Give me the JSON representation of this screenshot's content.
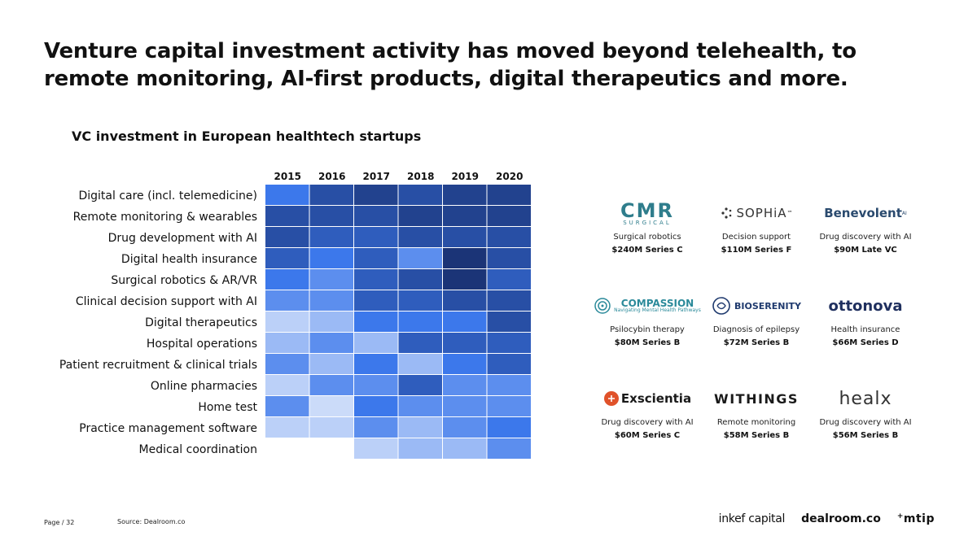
{
  "title": "Venture capital investment activity has moved beyond telehealth, to remote monitoring, AI-first products, digital therapeutics and more.",
  "chart_title": "VC investment in European healthtech startups",
  "chart_data": {
    "type": "heatmap",
    "title": "VC investment in European healthtech startups",
    "columns": [
      "2015",
      "2016",
      "2017",
      "2018",
      "2019",
      "2020"
    ],
    "rows": [
      "Digital care (incl. telemedicine)",
      "Remote monitoring & wearables",
      "Drug development with AI",
      "Digital health insurance",
      "Surgical robotics & AR/VR",
      "Clinical decision support with AI",
      "Digital therapeutics",
      "Hospital operations",
      "Patient recruitment & clinical trials",
      "Online pharmacies",
      "Home test",
      "Practice management software",
      "Medical coordination"
    ],
    "intensity_scale": "0 = no data (blank), 1 = lightest, 10 = darkest",
    "values": [
      [
        5,
        8,
        9,
        8,
        9,
        9
      ],
      [
        8,
        8,
        8,
        9,
        9,
        9
      ],
      [
        8,
        7,
        7,
        8,
        8,
        8
      ],
      [
        7,
        5,
        7,
        4,
        10,
        8
      ],
      [
        5,
        4,
        7,
        8,
        10,
        7
      ],
      [
        4,
        4,
        7,
        7,
        8,
        8
      ],
      [
        1,
        2,
        5,
        5,
        5,
        8
      ],
      [
        2,
        4,
        2,
        7,
        7,
        7
      ],
      [
        4,
        2,
        5,
        2,
        5,
        7
      ],
      [
        1,
        4,
        4,
        7,
        4,
        4
      ],
      [
        4,
        0.5,
        5,
        4,
        4,
        4
      ],
      [
        1,
        1,
        4,
        2,
        4,
        5
      ],
      [
        0,
        0,
        1,
        2,
        2,
        4
      ]
    ],
    "color_low": "#dbe6fb",
    "color_high": "#1b3477"
  },
  "logos": [
    {
      "name": "CMR",
      "sub": "SURGICAL",
      "desc": "Surgical robotics",
      "deal": "$240M Series C"
    },
    {
      "name": "SOPHiA",
      "sub": "™",
      "desc": "Decision support",
      "deal": "$110M Series F"
    },
    {
      "name": "Benevolent",
      "sub": "AI",
      "desc": "Drug discovery with AI",
      "deal": "$90M Late VC"
    },
    {
      "name": "COMPASSION",
      "sub": "Navigating Mental Health Pathways",
      "desc": "Psilocybin therapy",
      "deal": "$80M Series B"
    },
    {
      "name": "BIOSERENITY",
      "sub": "",
      "desc": "Diagnosis of epilepsy",
      "deal": "$72M Series B"
    },
    {
      "name": "ottonova",
      "sub": "",
      "desc": "Health insurance",
      "deal": "$66M Series D"
    },
    {
      "name": "Exscientia",
      "sub": "",
      "desc": "Drug discovery with AI",
      "deal": "$60M Series C"
    },
    {
      "name": "WITHINGS",
      "sub": "",
      "desc": "Remote monitoring",
      "deal": "$58M Series B"
    },
    {
      "name": "healx",
      "sub": "",
      "desc": "Drug discovery with AI",
      "deal": "$56M Series B"
    }
  ],
  "footer": {
    "page": "Page / 32",
    "source": "Source: Dealroom.co",
    "partners": [
      "inkef capital",
      "dealroom.co",
      "mtip"
    ]
  }
}
